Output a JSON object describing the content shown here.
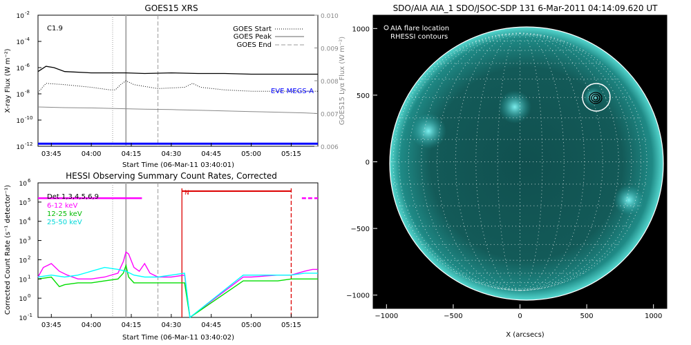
{
  "goes_panel": {
    "title": "GOES15 XRS",
    "flare_class": "C1.9",
    "ylabel_left": "X-ray Flux (W m⁻²)",
    "ylabel_right": "GOES15 Lyα Flux (W m⁻²)",
    "xlabel": "Start Time (06-Mar-11 03:40:01)",
    "legend": [
      {
        "label": "GOES Start",
        "style": "dotted"
      },
      {
        "label": "GOES Peak",
        "style": "solid"
      },
      {
        "label": "GOES End",
        "style": "dashed"
      }
    ],
    "eve_label": "EVE MEGS-A",
    "left_ticks": [
      {
        "base": "10",
        "exp": "-2",
        "val": -2
      },
      {
        "base": "10",
        "exp": "-4",
        "val": -4
      },
      {
        "base": "10",
        "exp": "-6",
        "val": -6
      },
      {
        "base": "10",
        "exp": "-8",
        "val": -8
      },
      {
        "base": "10",
        "exp": "-10",
        "val": -10
      },
      {
        "base": "10",
        "exp": "-12",
        "val": -12
      }
    ],
    "right_ticks": [
      "0.010",
      "0.009",
      "0.008",
      "0.007",
      "0.006"
    ],
    "time_ticks": [
      "03:45",
      "04:00",
      "04:15",
      "04:30",
      "04:45",
      "05:00",
      "05:15"
    ]
  },
  "hessi_panel": {
    "title": "HESSI Observing Summary Count Rates, Corrected",
    "ylabel": "Corrected Count Rate (s⁻¹ detector⁻¹)",
    "xlabel": "Start Time (06-Mar-11 03:40:02)",
    "night_label": "N",
    "legend": [
      {
        "label": "Det 1,3,4,5,6,9",
        "color": "#000000"
      },
      {
        "label": "6-12 keV",
        "color": "#ff00ff"
      },
      {
        "label": "12-25 keV",
        "color": "#00dd00"
      },
      {
        "label": "25-50 keV",
        "color": "#00ffff"
      }
    ],
    "y_ticks": [
      {
        "base": "10",
        "exp": "6",
        "val": 6
      },
      {
        "base": "10",
        "exp": "5",
        "val": 5
      },
      {
        "base": "10",
        "exp": "4",
        "val": 4
      },
      {
        "base": "10",
        "exp": "3",
        "val": 3
      },
      {
        "base": "10",
        "exp": "2",
        "val": 2
      },
      {
        "base": "10",
        "exp": "1",
        "val": 1
      },
      {
        "base": "10",
        "exp": "0",
        "val": 0
      },
      {
        "base": "10",
        "exp": "-1",
        "val": -1
      }
    ],
    "time_ticks": [
      "03:45",
      "04:00",
      "04:15",
      "04:30",
      "04:45",
      "05:00",
      "05:15"
    ]
  },
  "aia_panel": {
    "title": "SDO/AIA AIA_1 SDO/JSOC-SDP 131   6-Mar-2011 04:14:09.620 UT",
    "legend_flare": "AIA flare location",
    "legend_rhessi": "RHESSI contours",
    "xlabel": "X (arcsecs)",
    "x_ticks": [
      "−1000",
      "−500",
      "0",
      "500",
      "1000"
    ],
    "y_ticks": [
      "1000",
      "500",
      "0",
      "−500",
      "−1000"
    ]
  },
  "colors": {
    "goes_long": "#000000",
    "goes_short": "#000000",
    "lya": "#888888",
    "eve": "#0000ff",
    "pink": "#ff00ff",
    "green": "#00dd00",
    "cyan": "#00ffff",
    "night": "#dd0000",
    "sun": "#0b3b3b"
  },
  "chart_data": [
    {
      "type": "line",
      "title": "GOES15 XRS",
      "x_unit": "minutes since 03:40",
      "xlim": [
        0,
        105
      ],
      "ylim_log10": [
        -12,
        -2
      ],
      "y2lim": [
        0.006,
        0.01
      ],
      "markers": {
        "goes_start_min": 28,
        "goes_peak_min": 33,
        "goes_end_min": 45
      },
      "series": [
        {
          "name": "GOES long 1-8 Å",
          "style": "solid",
          "x": [
            0,
            3,
            6,
            10,
            20,
            30,
            33,
            40,
            50,
            60,
            70,
            80,
            90,
            100,
            105
          ],
          "log10_y": [
            -6.3,
            -5.9,
            -6.0,
            -6.3,
            -6.4,
            -6.4,
            -6.4,
            -6.45,
            -6.4,
            -6.45,
            -6.45,
            -6.5,
            -6.5,
            -6.5,
            -6.5
          ]
        },
        {
          "name": "GOES short 0.5-4 Å",
          "style": "dotted",
          "x": [
            0,
            3,
            10,
            20,
            27,
            29,
            31,
            33,
            36,
            45,
            55,
            58,
            61,
            70,
            80,
            90,
            100,
            105
          ],
          "log10_y": [
            -7.9,
            -7.2,
            -7.3,
            -7.5,
            -7.7,
            -7.7,
            -7.3,
            -7.0,
            -7.3,
            -7.6,
            -7.5,
            -7.2,
            -7.5,
            -7.7,
            -7.8,
            -7.8,
            -7.8,
            -7.8
          ]
        },
        {
          "name": "GOES15 Lyα",
          "style": "solid",
          "axis": "right",
          "x": [
            0,
            10,
            20,
            30,
            40,
            50,
            60,
            70,
            80,
            90,
            100,
            105
          ],
          "y": [
            0.0072,
            0.00718,
            0.00717,
            0.00715,
            0.00713,
            0.00712,
            0.0071,
            0.00708,
            0.00706,
            0.00704,
            0.00702,
            0.007
          ]
        },
        {
          "name": "EVE MEGS-A",
          "style": "solid",
          "x": [
            0,
            105
          ],
          "log10_y": [
            -11.8,
            -11.8
          ]
        }
      ]
    },
    {
      "type": "line",
      "title": "HESSI Observing Summary Count Rates, Corrected",
      "x_unit": "minutes since 03:40",
      "xlim": [
        0,
        105
      ],
      "ylim_log10": [
        -1,
        6
      ],
      "markers": {
        "goes_start_min": 28,
        "goes_peak_min": 33,
        "goes_end_min": 45,
        "night_start_min": 54,
        "night_end_min": 95
      },
      "attenuator_bars": [
        {
          "start": 0,
          "end": 39,
          "log10_y": 5.2
        },
        {
          "start": 99,
          "end": 105,
          "log10_y": 5.2
        }
      ],
      "series": [
        {
          "name": "6-12 keV",
          "color": "#ff00ff",
          "x": [
            0,
            2,
            5,
            8,
            11,
            15,
            20,
            25,
            30,
            32,
            33,
            34,
            36,
            38,
            40,
            42,
            45,
            50,
            55,
            57,
            77,
            80,
            90,
            95,
            100,
            103,
            105
          ],
          "log10_y": [
            1.1,
            1.6,
            1.8,
            1.4,
            1.2,
            1.0,
            1.0,
            1.1,
            1.3,
            1.9,
            2.4,
            2.3,
            1.6,
            1.4,
            1.8,
            1.3,
            1.1,
            1.1,
            1.2,
            -1,
            1.1,
            1.1,
            1.2,
            1.2,
            1.4,
            1.5,
            1.5
          ]
        },
        {
          "name": "12-25 keV",
          "color": "#00dd00",
          "x": [
            0,
            5,
            8,
            10,
            15,
            20,
            25,
            30,
            32,
            33,
            34,
            36,
            40,
            45,
            50,
            55,
            57,
            77,
            80,
            90,
            95,
            100,
            105
          ],
          "log10_y": [
            1.0,
            1.1,
            0.6,
            0.7,
            0.8,
            0.8,
            0.9,
            1.0,
            1.3,
            1.7,
            1.1,
            0.8,
            0.8,
            0.8,
            0.8,
            0.8,
            -1,
            0.9,
            0.9,
            0.9,
            1.0,
            1.0,
            1.0
          ]
        },
        {
          "name": "25-50 keV",
          "color": "#00ffff",
          "x": [
            0,
            5,
            10,
            15,
            20,
            25,
            30,
            33,
            36,
            40,
            45,
            50,
            55,
            57,
            77,
            80,
            90,
            95,
            100,
            105
          ],
          "log10_y": [
            1.1,
            1.2,
            1.1,
            1.2,
            1.4,
            1.6,
            1.5,
            1.4,
            1.2,
            1.1,
            1.1,
            1.2,
            1.3,
            -1,
            1.2,
            1.2,
            1.2,
            1.2,
            1.3,
            1.3
          ]
        }
      ]
    },
    {
      "type": "image",
      "title": "SDO/AIA 131 6-Mar-2011 04:14:09.620 UT",
      "xlim": [
        -1100,
        1100
      ],
      "ylim": [
        -1100,
        1100
      ],
      "solar_limb_radius_arcsec": 965,
      "flare_location": {
        "x": 500,
        "y": 480
      },
      "rhessi_contours_center": {
        "x": 500,
        "y": 475
      },
      "grid_spacing_deg": 10
    }
  ]
}
